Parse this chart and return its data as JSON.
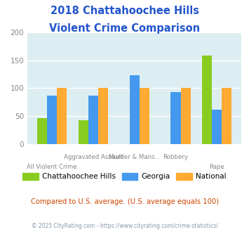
{
  "title_line1": "2018 Chattahoochee Hills",
  "title_line2": "Violent Crime Comparison",
  "categories": [
    "All Violent Crime",
    "Aggravated Assault",
    "Murder & Mans...",
    "Robbery",
    "Rape"
  ],
  "chattahoochee": [
    46,
    43,
    0,
    0,
    158
  ],
  "georgia": [
    86,
    87,
    123,
    93,
    61
  ],
  "national": [
    100,
    100,
    100,
    100,
    100
  ],
  "colors": {
    "chattahoochee": "#88cc22",
    "georgia": "#4499ee",
    "national": "#ffaa33"
  },
  "ylim": [
    0,
    200
  ],
  "yticks": [
    0,
    50,
    100,
    150,
    200
  ],
  "plot_bg": "#ddeef2",
  "subtitle": "Compared to U.S. average. (U.S. average equals 100)",
  "footer": "© 2025 CityRating.com - https://www.cityrating.com/crime-statistics/",
  "title_color": "#2255cc",
  "subtitle_color": "#cc4400",
  "footer_color": "#8899aa",
  "legend_labels": [
    "Chattahoochee Hills",
    "Georgia",
    "National"
  ],
  "xtick_color": "#888888",
  "ytick_color": "#888888"
}
